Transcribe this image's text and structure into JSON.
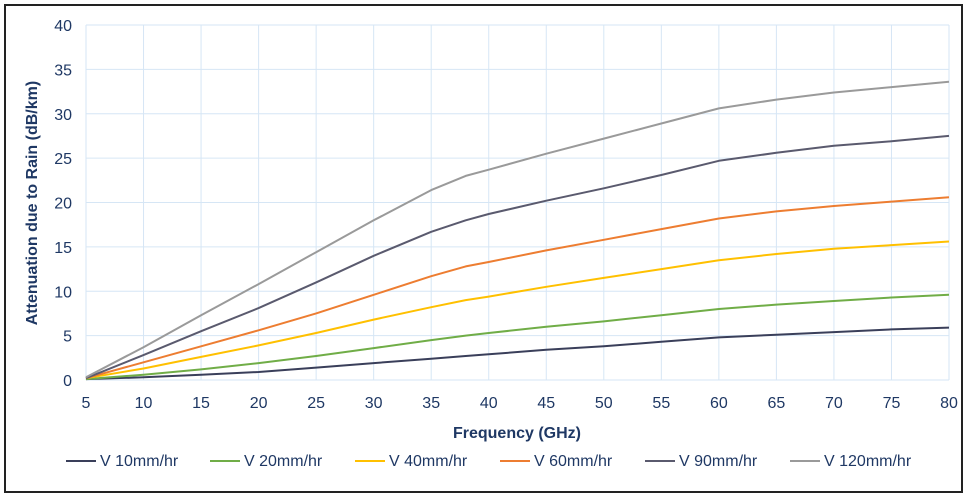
{
  "chart_data": {
    "type": "line",
    "xlabel": "Frequency (GHz)",
    "ylabel": "Attenuation due to Rain (dB/km)",
    "xlim": [
      5,
      80
    ],
    "ylim": [
      0,
      40
    ],
    "x_ticks": [
      "5",
      "10",
      "15",
      "20",
      "25",
      "30",
      "35",
      "40",
      "45",
      "50",
      "55",
      "60",
      "65",
      "70",
      "75",
      "80"
    ],
    "y_ticks": [
      "0",
      "5",
      "10",
      "15",
      "20",
      "25",
      "30",
      "35",
      "40"
    ],
    "grid": true,
    "legend_position": "bottom",
    "x": [
      5,
      10,
      15,
      20,
      25,
      30,
      35,
      38,
      40,
      45,
      50,
      55,
      60,
      65,
      70,
      75,
      80
    ],
    "series": [
      {
        "name": "V 10mm/hr",
        "color": "#3a3f5a",
        "values": [
          0.1,
          0.3,
          0.6,
          0.9,
          1.4,
          1.9,
          2.4,
          2.7,
          2.9,
          3.4,
          3.8,
          4.3,
          4.8,
          5.1,
          5.4,
          5.7,
          5.9
        ]
      },
      {
        "name": "V 20mm/hr",
        "color": "#70ad47",
        "values": [
          0.1,
          0.6,
          1.2,
          1.9,
          2.7,
          3.6,
          4.5,
          5.0,
          5.3,
          6.0,
          6.6,
          7.3,
          8.0,
          8.5,
          8.9,
          9.3,
          9.6
        ]
      },
      {
        "name": "V 40mm/hr",
        "color": "#ffc000",
        "values": [
          0.2,
          1.3,
          2.6,
          3.9,
          5.3,
          6.8,
          8.2,
          9.0,
          9.4,
          10.5,
          11.5,
          12.5,
          13.5,
          14.2,
          14.8,
          15.2,
          15.6
        ]
      },
      {
        "name": "V 60mm/hr",
        "color": "#ed7d31",
        "values": [
          0.2,
          2.0,
          3.8,
          5.6,
          7.5,
          9.6,
          11.7,
          12.8,
          13.3,
          14.6,
          15.8,
          17.0,
          18.2,
          19.0,
          19.6,
          20.1,
          20.6
        ]
      },
      {
        "name": "V 90mm/hr",
        "color": "#5a5a6e",
        "values": [
          0.2,
          2.8,
          5.5,
          8.1,
          11.0,
          14.0,
          16.7,
          18.0,
          18.7,
          20.2,
          21.6,
          23.1,
          24.7,
          25.6,
          26.4,
          26.9,
          27.5
        ]
      },
      {
        "name": "V 120mm/hr",
        "color": "#9a9a9a",
        "values": [
          0.3,
          3.7,
          7.3,
          10.8,
          14.4,
          18.0,
          21.4,
          23.0,
          23.7,
          25.5,
          27.2,
          28.9,
          30.6,
          31.6,
          32.4,
          33.0,
          33.6
        ]
      }
    ]
  }
}
